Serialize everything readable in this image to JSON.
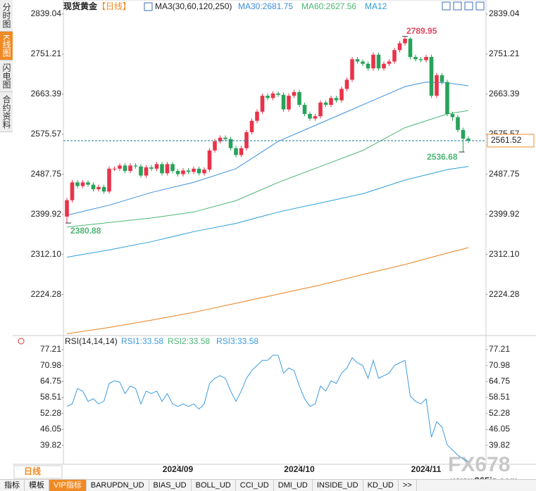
{
  "sidebar": [
    "分时图",
    "K线图",
    "闪电图",
    "合约资料"
  ],
  "header": {
    "instrument": "现货黄金",
    "period": "【日线】",
    "indicator": "MA3(30,60,120,250)",
    "legend": [
      "MA30:2681.75",
      "MA60:2627.56",
      "MA12"
    ]
  },
  "chart_data": [
    {
      "type": "candlestick",
      "categories": [
        null,
        null,
        null,
        null,
        null,
        null,
        null,
        null,
        null,
        null,
        null,
        null,
        null,
        null,
        null,
        null,
        null,
        null,
        null,
        null,
        null,
        "2024/09",
        null,
        null,
        null,
        null,
        null,
        null,
        null,
        null,
        null,
        null,
        null,
        null,
        null,
        null,
        null,
        null,
        null,
        null,
        null,
        null,
        null,
        null,
        "2024/10",
        null,
        null,
        null,
        null,
        null,
        null,
        null,
        null,
        null,
        null,
        null,
        null,
        null,
        null,
        null,
        null,
        null,
        null,
        null,
        null,
        null,
        null,
        null,
        "2024/11",
        null,
        null,
        null,
        null,
        null,
        null,
        null,
        null
      ],
      "open": [
        2395,
        2431,
        2470,
        2462,
        2470,
        2465,
        2455,
        2460,
        2450,
        2500,
        2500,
        2507,
        2495,
        2507,
        2505,
        2485,
        2503,
        2500,
        2510,
        2490,
        2510,
        2495,
        2488,
        2496,
        2493,
        2500,
        2490,
        2498,
        2540,
        2560,
        2568,
        2565,
        2545,
        2530,
        2545,
        2580,
        2605,
        2625,
        2660,
        2655,
        2665,
        2662,
        2630,
        2660,
        2668,
        2640,
        2620,
        2610,
        2615,
        2645,
        2640,
        2655,
        2650,
        2675,
        2695,
        2740,
        2735,
        2730,
        2720,
        2750,
        2720,
        2730,
        2735,
        2760,
        2775,
        2785,
        2745,
        2740,
        2738,
        2745,
        2660,
        2705,
        2690,
        2620,
        2613,
        2585,
        2566
      ],
      "high": [
        2436,
        2475,
        2475,
        2475,
        2475,
        2470,
        2465,
        2465,
        2505,
        2505,
        2512,
        2512,
        2512,
        2512,
        2510,
        2508,
        2508,
        2515,
        2515,
        2515,
        2515,
        2500,
        2501,
        2501,
        2505,
        2505,
        2503,
        2545,
        2565,
        2573,
        2573,
        2570,
        2550,
        2550,
        2585,
        2610,
        2630,
        2665,
        2665,
        2670,
        2670,
        2667,
        2665,
        2673,
        2673,
        2645,
        2625,
        2620,
        2650,
        2650,
        2660,
        2660,
        2680,
        2700,
        2745,
        2745,
        2740,
        2735,
        2755,
        2755,
        2735,
        2740,
        2765,
        2780,
        2789.95,
        2788,
        2750,
        2745,
        2750,
        2750,
        2710,
        2710,
        2695,
        2625,
        2618,
        2590,
        2571
      ],
      "low": [
        2380.88,
        2426,
        2457,
        2457,
        2460,
        2450,
        2450,
        2445,
        2445,
        2495,
        2495,
        2490,
        2490,
        2500,
        2480,
        2480,
        2495,
        2495,
        2485,
        2485,
        2490,
        2483,
        2483,
        2488,
        2488,
        2485,
        2485,
        2493,
        2535,
        2555,
        2560,
        2540,
        2525,
        2525,
        2540,
        2575,
        2600,
        2620,
        2650,
        2650,
        2657,
        2625,
        2625,
        2655,
        2635,
        2615,
        2605,
        2605,
        2610,
        2635,
        2635,
        2645,
        2645,
        2670,
        2690,
        2730,
        2725,
        2715,
        2715,
        2715,
        2715,
        2725,
        2730,
        2755,
        2770,
        2740,
        2735,
        2733,
        2733,
        2655,
        2655,
        2685,
        2615,
        2605,
        2580,
        2536.68,
        2556
      ],
      "close": [
        2431,
        2470,
        2462,
        2470,
        2465,
        2455,
        2460,
        2450,
        2500,
        2500,
        2507,
        2495,
        2507,
        2505,
        2485,
        2503,
        2500,
        2510,
        2490,
        2510,
        2495,
        2488,
        2496,
        2493,
        2500,
        2490,
        2498,
        2540,
        2560,
        2568,
        2565,
        2545,
        2530,
        2545,
        2580,
        2605,
        2625,
        2660,
        2655,
        2665,
        2662,
        2630,
        2660,
        2668,
        2640,
        2620,
        2610,
        2615,
        2645,
        2640,
        2655,
        2650,
        2675,
        2695,
        2740,
        2735,
        2730,
        2720,
        2750,
        2720,
        2730,
        2735,
        2760,
        2775,
        2785,
        2745,
        2740,
        2738,
        2745,
        2660,
        2705,
        2690,
        2620,
        2613,
        2585,
        2566,
        2561.52
      ],
      "color_up": "#e8334a",
      "color_down": "#27a35a",
      "ylim": [
        2137.3,
        2839.04
      ],
      "yticks": [
        2839.04,
        2751.21,
        2663.39,
        2575.57,
        2487.75,
        2399.92,
        {
          "value": 2312.1,
          "label": "2312.10"
        },
        2224.28
      ],
      "series": [
        {
          "color": "#3b8fdc",
          "x": [
            0,
            8,
            16,
            24,
            32,
            40,
            48,
            56,
            64,
            68,
            72,
            76
          ],
          "values": [
            2398,
            2420,
            2448,
            2470,
            2500,
            2560,
            2600,
            2640,
            2680,
            2690,
            2688,
            2681.75
          ]
        },
        {
          "color": "#4cb574",
          "x": [
            0,
            8,
            16,
            24,
            32,
            40,
            48,
            56,
            64,
            68,
            72,
            76
          ],
          "values": [
            2372,
            2382,
            2392,
            2405,
            2430,
            2470,
            2505,
            2540,
            2590,
            2605,
            2620,
            2627.56
          ]
        },
        {
          "color": "#2b9fd8",
          "x": [
            0,
            8,
            16,
            24,
            32,
            40,
            48,
            56,
            64,
            72,
            76
          ],
          "values": [
            2306,
            2322,
            2340,
            2362,
            2380,
            2405,
            2425,
            2445,
            2475,
            2498,
            2505
          ]
        },
        {
          "color": "#e8801e",
          "x": [
            0,
            8,
            16,
            24,
            32,
            40,
            48,
            56,
            64,
            72,
            76
          ],
          "values": [
            2138,
            2152,
            2168,
            2185,
            2205,
            2225,
            2245,
            2268,
            2290,
            2315,
            2327
          ]
        }
      ]
    },
    {
      "type": "line",
      "title": "RSI(14,14,14)",
      "legend": [
        "RSI1:33.58",
        "RSI2:33.58",
        "RSI3:33.58"
      ],
      "color": "#3d9be0",
      "values": [
        55,
        56,
        62,
        61,
        57,
        58,
        56,
        57,
        64,
        65,
        64.5,
        60,
        63,
        62,
        56,
        61,
        60,
        61,
        57,
        60,
        56,
        55,
        56,
        55,
        56,
        54,
        56,
        64,
        66,
        67,
        66,
        61,
        57,
        61,
        66,
        69,
        71,
        73,
        73,
        75,
        75,
        68,
        70,
        69,
        63,
        58,
        55,
        56,
        63,
        61,
        65,
        64,
        68,
        70,
        74,
        72,
        71,
        66,
        73,
        66,
        67,
        68,
        71,
        72,
        73,
        59,
        57,
        56,
        58,
        43,
        49,
        47,
        40,
        38,
        36,
        34.5,
        33.58
      ],
      "ylim": [
        33,
        79.1
      ],
      "yticks": [
        77.21,
        70.98,
        64.75,
        58.51,
        52.28,
        46.05,
        39.82
      ]
    }
  ],
  "footer": {
    "period": "日线",
    "tabs": [
      "指标",
      "模板",
      "VIP指标",
      "BARUPDN_UD",
      "BIAS_UD",
      "BOLL_UD",
      "CCI_UD",
      "DMI_UD",
      "INSIDE_UD",
      "KD_UD",
      ">>"
    ],
    "watermark": "FX678",
    "site": "www.365jz.com"
  }
}
